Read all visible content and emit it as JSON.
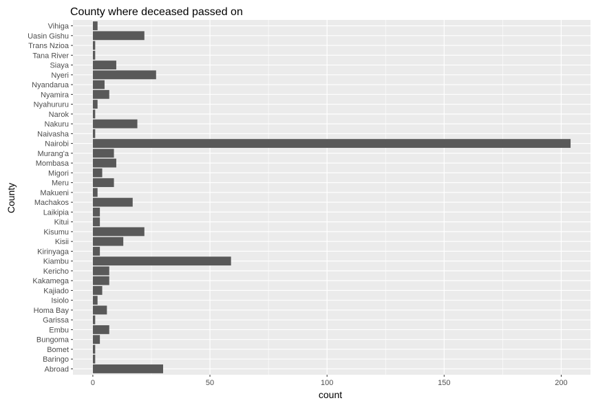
{
  "chart_data": {
    "type": "bar",
    "orientation": "horizontal",
    "title": "County where deceased passed on",
    "xlabel": "count",
    "ylabel": "County",
    "xlim": [
      -8.5,
      212.5
    ],
    "xticks": [
      0,
      50,
      100,
      150,
      200
    ],
    "grid": true,
    "legend": "none",
    "categories": [
      "Abroad",
      "Baringo",
      "Bomet",
      "Bungoma",
      "Embu",
      "Garissa",
      "Homa Bay",
      "Isiolo",
      "Kajiado",
      "Kakamega",
      "Kericho",
      "Kiambu",
      "Kirinyaga",
      "Kisii",
      "Kisumu",
      "Kitui",
      "Laikipia",
      "Machakos",
      "Makueni",
      "Meru",
      "Migori",
      "Mombasa",
      "Murang'a",
      "Nairobi",
      "Naivasha",
      "Nakuru",
      "Narok",
      "Nyahururu",
      "Nyamira",
      "Nyandarua",
      "Nyeri",
      "Siaya",
      "Tana River",
      "Trans Nzioa",
      "Uasin Gishu",
      "Vihiga"
    ],
    "values": [
      30,
      1,
      1,
      3,
      7,
      1,
      6,
      2,
      4,
      7,
      7,
      59,
      3,
      13,
      22,
      3,
      3,
      17,
      2,
      9,
      4,
      10,
      9,
      204,
      1,
      19,
      1,
      2,
      7,
      5,
      27,
      10,
      1,
      1,
      22,
      2
    ]
  },
  "colors": {
    "panel_background": "#ebebeb",
    "grid_major": "#ffffff",
    "bar_fill": "#595959",
    "tick_label": "#4d4d4d",
    "tick_mark": "#333333"
  }
}
